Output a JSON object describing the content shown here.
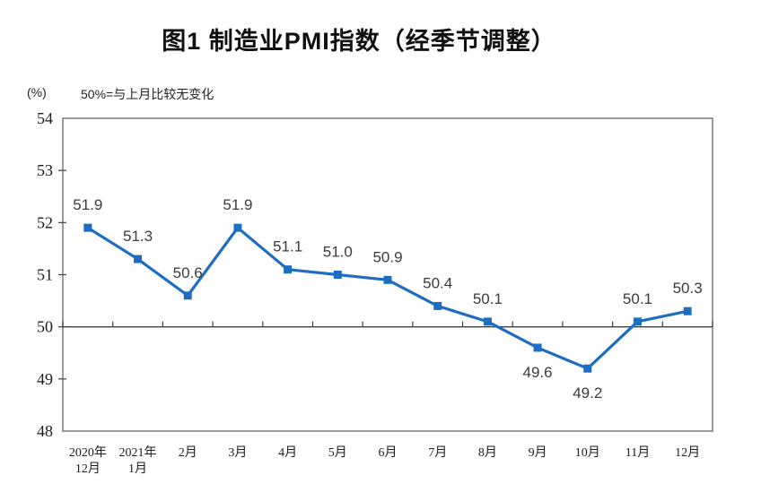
{
  "title": "图1 制造业PMI指数（经季节调整）",
  "y_axis_unit": "(%)",
  "note": "50%=与上月比较无变化",
  "colors": {
    "line": "#1f6dc1",
    "marker": "#1f6dc1",
    "frame": "#7a7a7a",
    "baseline": "#3f3f3f",
    "tick": "#3f3f3f",
    "data_label": "#3b3b3b",
    "tick_label": "#1d1d1d"
  },
  "chart_data": {
    "type": "line",
    "title": "图1 制造业PMI指数（经季节调整）",
    "unit": "(%)",
    "annotation": "50%=与上月比较无变化",
    "categories": [
      [
        "2020年",
        "12月"
      ],
      [
        "2021年",
        "1月"
      ],
      [
        "2月"
      ],
      [
        "3月"
      ],
      [
        "4月"
      ],
      [
        "5月"
      ],
      [
        "6月"
      ],
      [
        "7月"
      ],
      [
        "8月"
      ],
      [
        "9月"
      ],
      [
        "10月"
      ],
      [
        "11月"
      ],
      [
        "12月"
      ]
    ],
    "series": [
      {
        "name": "制造业PMI",
        "values": [
          51.9,
          51.3,
          50.6,
          51.9,
          51.1,
          51.0,
          50.9,
          50.4,
          50.1,
          49.6,
          49.2,
          50.1,
          50.3
        ]
      }
    ],
    "data_labels": [
      "51.9",
      "51.3",
      "50.6",
      "51.9",
      "51.1",
      "51.0",
      "50.9",
      "50.4",
      "50.1",
      "49.6",
      "49.2",
      "50.1",
      "50.3"
    ],
    "label_positions": [
      "above",
      "above",
      "above",
      "above",
      "above",
      "above",
      "above",
      "above",
      "above",
      "below",
      "below",
      "above",
      "above"
    ],
    "ylim": [
      48,
      54
    ],
    "y_ticks": [
      48,
      49,
      50,
      51,
      52,
      53,
      54
    ],
    "baseline_value": 50,
    "grid": false,
    "legend": "none",
    "marker": "square",
    "xlabel": "",
    "ylabel": "(%)"
  }
}
